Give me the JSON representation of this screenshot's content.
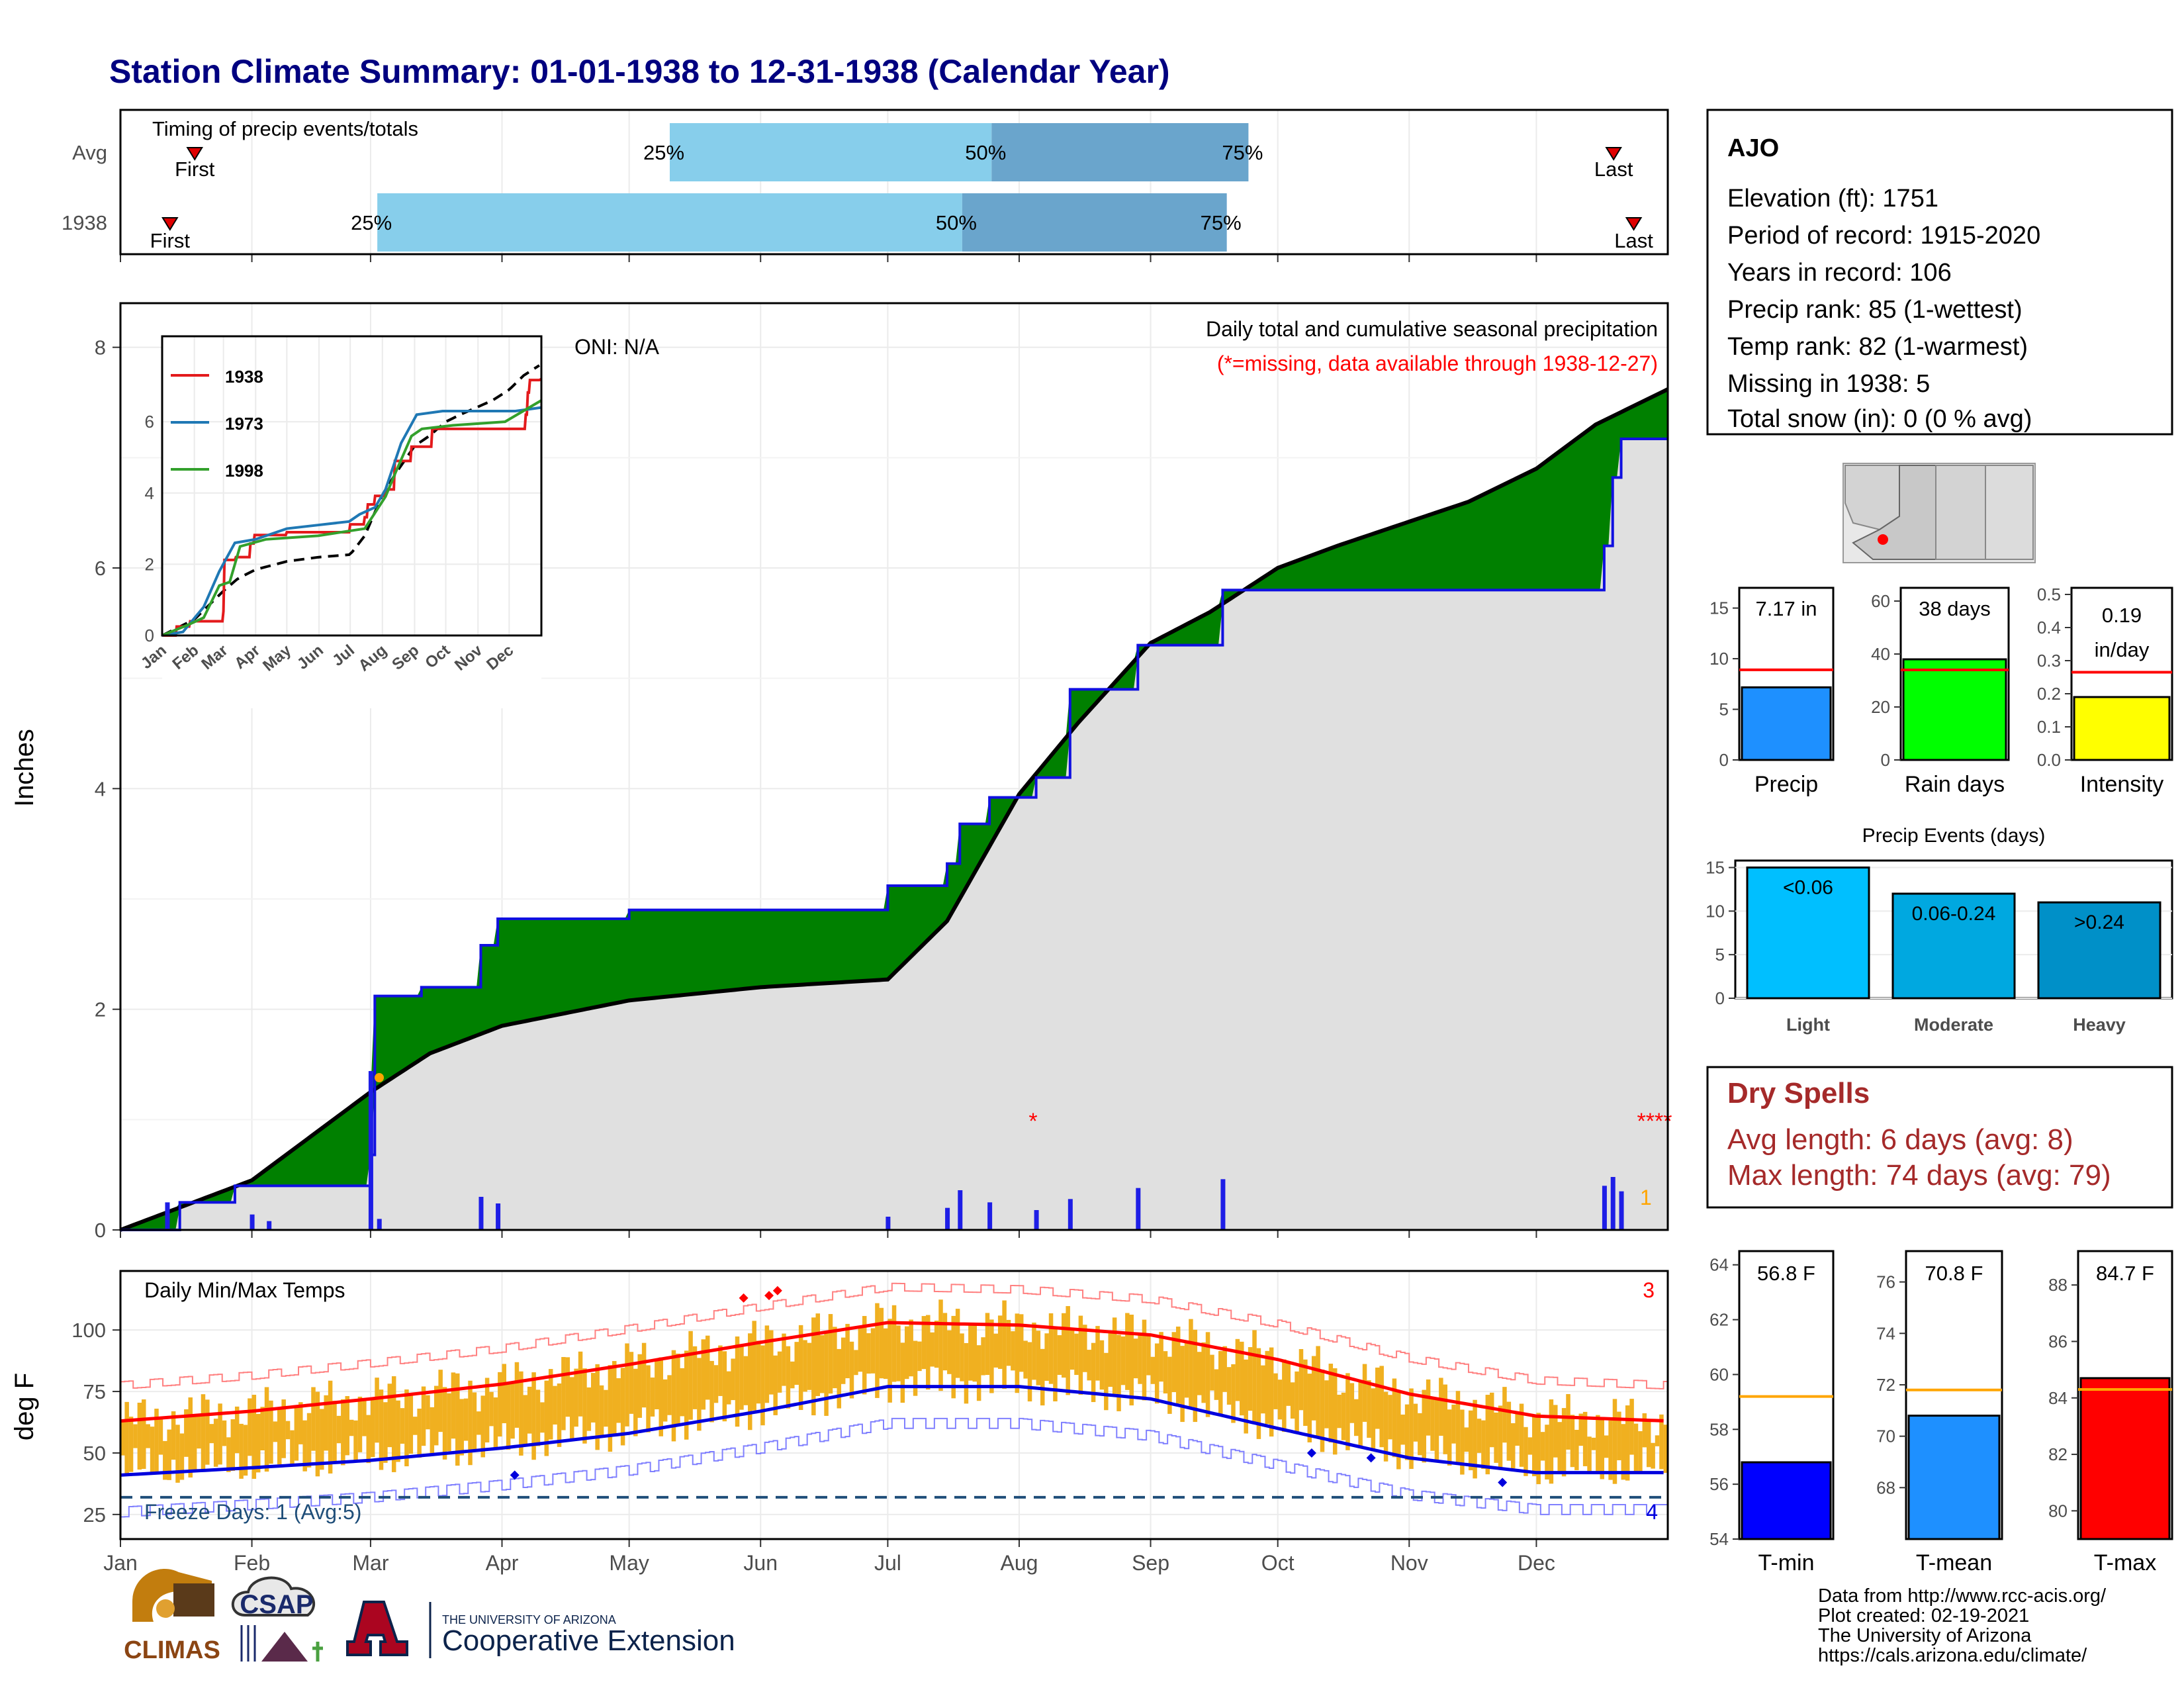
{
  "title": "Station Climate Summary: 01-01-1938 to 12-31-1938 (Calendar Year)",
  "colors": {
    "title": "#000080",
    "precip_bar": "#1e1ee6",
    "avg_line": "#000000",
    "above_fill": "#008000",
    "below_fill": "#8b5a00",
    "area_fill": "#e0e0e0",
    "tmax": "#ff0000",
    "tmin": "#0000dd",
    "temp_bar": "#f0b020",
    "light": "#00bfff",
    "moderate": "#00a8e0",
    "heavy": "#0090c8",
    "dry_spell": "#a52a2a"
  },
  "timing": {
    "title": "Timing of precip events/totals",
    "rows": [
      {
        "label": "Avg",
        "first": 0.048,
        "q25": 0.355,
        "q50": 0.563,
        "q75": 0.729,
        "last": 0.965
      },
      {
        "label": "1938",
        "first": 0.032,
        "q25": 0.166,
        "q50": 0.544,
        "q75": 0.715,
        "last": 0.978
      }
    ],
    "first_label": "First",
    "last_label": "Last",
    "q25_label": "25%",
    "q50_label": "50%",
    "q75_label": "75%"
  },
  "precip_panel": {
    "ylabel": "Inches",
    "title": "Daily total and cumulative seasonal precipitation",
    "subtitle": "(*=missing, data available through 1938-12-27)",
    "oni": "ONI: N/A",
    "right_count": "1",
    "yticks": [
      "0",
      "2",
      "4",
      "6",
      "8"
    ]
  },
  "inset": {
    "legend": [
      "1938",
      "1973",
      "1998"
    ],
    "legend_colors": [
      "#e31a1c",
      "#1f78b4",
      "#33a02c"
    ],
    "yticks": [
      "0",
      "2",
      "4",
      "6"
    ],
    "months": [
      "Jan",
      "Feb",
      "Mar",
      "Apr",
      "May",
      "Jun",
      "Jul",
      "Aug",
      "Sep",
      "Oct",
      "Nov",
      "Dec"
    ]
  },
  "temp_panel": {
    "title": "Daily Min/Max Temps",
    "ylabel": "deg F",
    "freeze": "Freeze Days: 1 (Avg:5)",
    "count_top": "3",
    "count_bottom": "4",
    "yticks": [
      "25",
      "50",
      "75",
      "100"
    ]
  },
  "months": [
    "Jan",
    "Feb",
    "Mar",
    "Apr",
    "May",
    "Jun",
    "Jul",
    "Aug",
    "Sep",
    "Oct",
    "Nov",
    "Dec"
  ],
  "station": {
    "name": "AJO",
    "lines": [
      "Elevation (ft): 1751",
      "Period of record: 1915-2020",
      "Years in record: 106",
      "Precip rank: 85 (1-wettest)",
      "Temp rank: 82 (1-warmest)",
      "Missing in 1938: 5",
      "Total snow (in): 0 (0 % avg)"
    ]
  },
  "mini_bars": [
    {
      "label": "Precip",
      "value_text": "7.17 in",
      "value": 7.17,
      "avg": 8.9,
      "max": 17,
      "ticks": [
        "0",
        "5",
        "10",
        "15"
      ],
      "color": "#1e90ff"
    },
    {
      "label": "Rain days",
      "value_text": "38 days",
      "value": 38,
      "avg": 34,
      "max": 65,
      "ticks": [
        "0",
        "20",
        "40",
        "60"
      ],
      "color": "#00ff00"
    },
    {
      "label": "Intensity",
      "value_text": "0.19 in/day",
      "value_text_1": "0.19",
      "value_text_2": "in/day",
      "value": 0.19,
      "avg": 0.265,
      "max": 0.52,
      "ticks": [
        "0.0",
        "0.1",
        "0.2",
        "0.3",
        "0.4",
        "0.5"
      ],
      "color": "#ffff00"
    }
  ],
  "precip_events": {
    "title": "Precip Events (days)",
    "ticks": [
      "0",
      "5",
      "10",
      "15"
    ],
    "bars": [
      {
        "label": "Light",
        "inner": "<0.06",
        "value": 15
      },
      {
        "label": "Moderate",
        "inner": "0.06-0.24",
        "value": 12
      },
      {
        "label": "Heavy",
        "inner": ">0.24",
        "value": 11
      }
    ]
  },
  "dry_spells": {
    "title": "Dry Spells",
    "avg": "Avg length: 6 days (avg: 8)",
    "max": "Max length: 74 days (avg: 79)"
  },
  "temp_bars": [
    {
      "label": "T-min",
      "value_text": "56.8 F",
      "value": 56.8,
      "avg": 59.2,
      "min": 54,
      "max": 64.5,
      "ticks": [
        "54",
        "56",
        "58",
        "60",
        "62",
        "64"
      ],
      "color": "#0000ff"
    },
    {
      "label": "T-mean",
      "value_text": "70.8 F",
      "value": 70.8,
      "avg": 71.8,
      "min": 66,
      "max": 77.2,
      "ticks": [
        "68",
        "70",
        "72",
        "74",
        "76"
      ],
      "color": "#1e90ff"
    },
    {
      "label": "T-max",
      "value_text": "84.7 F",
      "value": 84.7,
      "avg": 84.3,
      "min": 79,
      "max": 89.2,
      "ticks": [
        "80",
        "82",
        "84",
        "86",
        "88"
      ],
      "color": "#ff0000"
    }
  ],
  "credits": [
    "Data from http://www.rcc-acis.org/",
    "Plot created: 02-19-2021",
    "The University of Arizona",
    "https://cals.arizona.edu/climate/"
  ],
  "logos": {
    "climas": "CLIMAS",
    "csap": "CSAP",
    "ua_small": "THE UNIVERSITY OF ARIZONA",
    "ua_big": "Cooperative Extension"
  },
  "chart_data": [
    {
      "type": "area",
      "title": "Daily total and cumulative seasonal precipitation",
      "ylabel": "Inches",
      "ylim": [
        0,
        8.4
      ],
      "series": [
        {
          "name": "1938",
          "points": [
            [
              "Jan 1",
              0
            ],
            [
              "Jan 15",
              0.25
            ],
            [
              "Jan 28",
              0.4
            ],
            [
              "Mar 1",
              0.68
            ],
            [
              "Mar 2",
              2.12
            ],
            [
              "Mar 12",
              2.12
            ],
            [
              "Mar 13",
              2.2
            ],
            [
              "Mar 26",
              2.2
            ],
            [
              "Mar 27",
              2.58
            ],
            [
              "Mar 31",
              2.82
            ],
            [
              "May 1",
              2.9
            ],
            [
              "Jun 27",
              2.9
            ],
            [
              "Jul 1",
              3.12
            ],
            [
              "Jul 15",
              3.32
            ],
            [
              "Jul 18",
              3.68
            ],
            [
              "Jul 25",
              3.92
            ],
            [
              "Aug 5",
              4.1
            ],
            [
              "Aug 13",
              4.9
            ],
            [
              "Aug 29",
              5.3
            ],
            [
              "Sep 18",
              5.8
            ],
            [
              "Dec 15",
              5.8
            ],
            [
              "Dec 17",
              6.2
            ],
            [
              "Dec 19",
              6.82
            ],
            [
              "Dec 21",
              7.17
            ],
            [
              "Dec 27",
              7.17
            ]
          ]
        },
        {
          "name": "Avg",
          "points": [
            [
              "Jan 1",
              0
            ],
            [
              "Feb 1",
              0.45
            ],
            [
              "Mar 1",
              1.25
            ],
            [
              "Mar 15",
              1.6
            ],
            [
              "Apr 1",
              1.85
            ],
            [
              "May 1",
              2.08
            ],
            [
              "Jun 1",
              2.2
            ],
            [
              "Jul 1",
              2.27
            ],
            [
              "Jul 15",
              2.8
            ],
            [
              "Aug 1",
              3.95
            ],
            [
              "Aug 15",
              4.6
            ],
            [
              "Sep 1",
              5.32
            ],
            [
              "Sep 15",
              5.6
            ],
            [
              "Oct 1",
              6.0
            ],
            [
              "Oct 15",
              6.2
            ],
            [
              "Nov 1",
              6.42
            ],
            [
              "Nov 15",
              6.6
            ],
            [
              "Dec 1",
              6.9
            ],
            [
              "Dec 15",
              7.3
            ],
            [
              "Dec 31",
              7.62
            ]
          ]
        }
      ],
      "daily_precip": [
        [
          "Jan 12",
          0.25
        ],
        [
          "Feb 1",
          0.14
        ],
        [
          "Feb 5",
          0.08
        ],
        [
          "Mar 1",
          1.44
        ],
        [
          "Mar 3",
          0.1
        ],
        [
          "Mar 27",
          0.3
        ],
        [
          "Mar 31",
          0.24
        ],
        [
          "Jul 1",
          0.12
        ],
        [
          "Jul 15",
          0.2
        ],
        [
          "Jul 18",
          0.36
        ],
        [
          "Jul 25",
          0.25
        ],
        [
          "Aug 5",
          0.18
        ],
        [
          "Aug 13",
          0.28
        ],
        [
          "Aug 29",
          0.38
        ],
        [
          "Sep 18",
          0.46
        ],
        [
          "Dec 17",
          0.4
        ],
        [
          "Dec 19",
          0.48
        ],
        [
          "Dec 21",
          0.35
        ]
      ]
    },
    {
      "type": "line",
      "title": "Daily Min/Max Temps",
      "ylabel": "deg F",
      "ylim": [
        15,
        124
      ],
      "series": [
        {
          "name": "Avg max",
          "x": [
            "Jan",
            "Feb",
            "Mar",
            "Apr",
            "May",
            "Jun",
            "Jul",
            "Aug",
            "Sep",
            "Oct",
            "Nov",
            "Dec",
            "Dec 31"
          ],
          "values": [
            63,
            67,
            72,
            78,
            86,
            95,
            103,
            102,
            98,
            88,
            74,
            65,
            63
          ]
        },
        {
          "name": "Avg min",
          "x": [
            "Jan",
            "Feb",
            "Mar",
            "Apr",
            "May",
            "Jun",
            "Jul",
            "Aug",
            "Sep",
            "Oct",
            "Nov",
            "Dec",
            "Dec 31"
          ],
          "values": [
            41,
            44,
            47,
            52,
            58,
            67,
            77,
            77,
            72,
            60,
            48,
            42,
            42
          ]
        }
      ],
      "freeze_line": 32
    }
  ]
}
